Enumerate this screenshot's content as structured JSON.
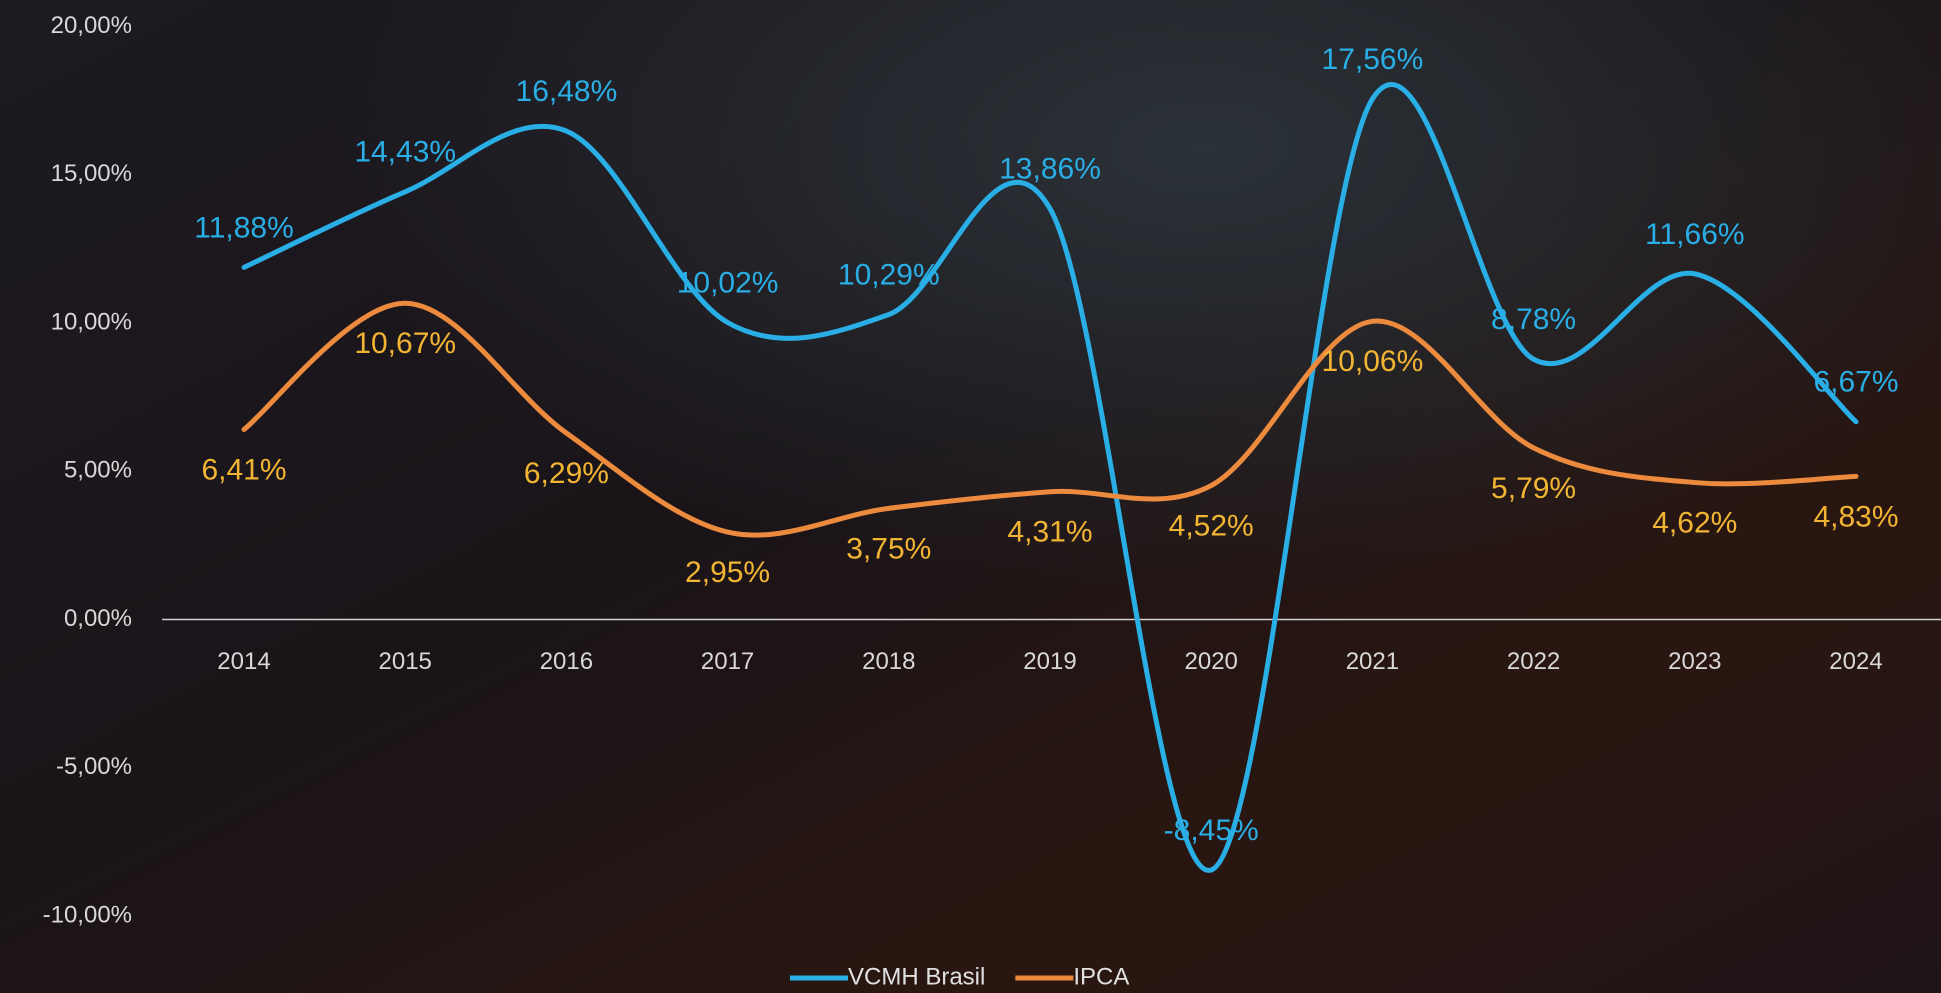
{
  "chart_data": {
    "type": "line",
    "categories": [
      "2014",
      "2015",
      "2016",
      "2017",
      "2018",
      "2019",
      "2020",
      "2021",
      "2022",
      "2023",
      "2024"
    ],
    "series": [
      {
        "name": "VCMH Brasil",
        "color": "#2aaee6",
        "label_color": "#2aaee6",
        "values": [
          11.88,
          14.43,
          16.48,
          10.02,
          10.29,
          13.86,
          -8.45,
          17.56,
          8.78,
          11.66,
          6.67
        ],
        "value_labels": [
          "11,88%",
          "14,43%",
          "16,48%",
          "10,02%",
          "10,29%",
          "13,86%",
          "-8,45%",
          "17,56%",
          "8,78%",
          "11,66%",
          "6,67%"
        ]
      },
      {
        "name": "IPCA",
        "color": "#ec8a3e",
        "label_color": "#f2b533",
        "values": [
          6.41,
          10.67,
          6.29,
          2.95,
          3.75,
          4.31,
          4.52,
          10.06,
          5.79,
          4.62,
          4.83
        ],
        "value_labels": [
          "6,41%",
          "10,67%",
          "6,29%",
          "2,95%",
          "3,75%",
          "4,31%",
          "4,52%",
          "10,06%",
          "5,79%",
          "4,62%",
          "4,83%"
        ]
      }
    ],
    "ylim": [
      -12.6,
      20.9
    ],
    "yticks": [
      {
        "value": -10,
        "label": "-10,00%"
      },
      {
        "value": -5,
        "label": "-5,00%"
      },
      {
        "value": 0,
        "label": "0,00%"
      },
      {
        "value": 5,
        "label": "5,00%"
      },
      {
        "value": 10,
        "label": "10,00%"
      },
      {
        "value": 15,
        "label": "15,00%"
      },
      {
        "value": 20,
        "label": "20,00%"
      }
    ],
    "grid": false,
    "smooth": true,
    "legend": "bottom"
  }
}
